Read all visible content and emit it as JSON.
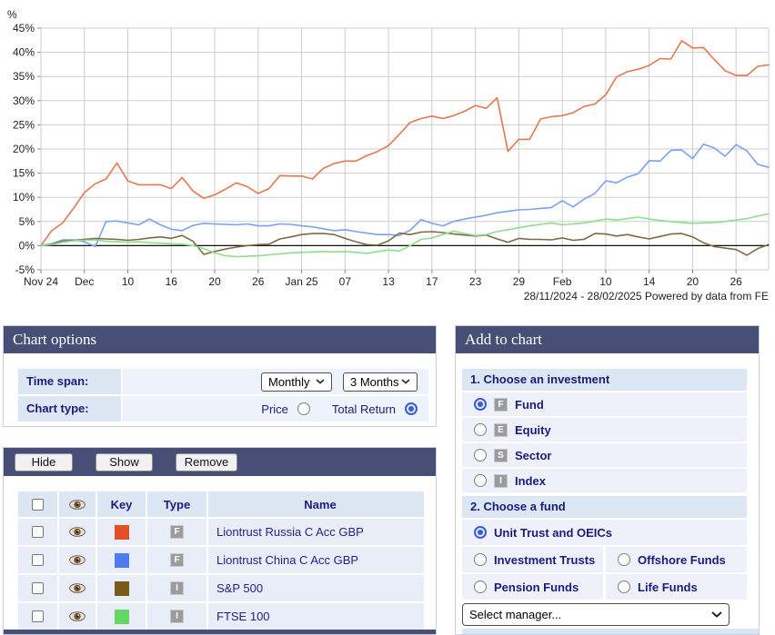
{
  "colors": {
    "header_bar": "#474f76",
    "section_bar": "#dde6f3",
    "row_bg": "#eef1f9",
    "navy_text": "#1b1b7e",
    "grid": "#cdcdcd"
  },
  "chart_data": {
    "type": "line",
    "title": "",
    "y_unit": "%",
    "ylim": [
      -5,
      45
    ],
    "ytick_step": 5,
    "ytick_labels": [
      "45%",
      "40%",
      "35%",
      "30%",
      "25%",
      "20%",
      "15%",
      "10%",
      "5%",
      "0%",
      "-5%"
    ],
    "xtick_labels": [
      "Nov 24",
      "Dec",
      "10",
      "16",
      "20",
      "26",
      "Jan 25",
      "07",
      "13",
      "17",
      "23",
      "29",
      "Feb",
      "10",
      "14",
      "20",
      "26"
    ],
    "xtick_every": 4,
    "grid": true,
    "zero_line": true,
    "footer": "28/11/2024 - 28/02/2025 Powered by data from FE",
    "series": [
      {
        "name": "Liontrust Russia C Acc GBP",
        "color": "#e8764f",
        "values": [
          0.0,
          3.1,
          4.7,
          7.7,
          11.0,
          12.8,
          13.8,
          17.1,
          13.4,
          12.6,
          12.6,
          12.6,
          11.8,
          14.1,
          11.3,
          9.8,
          10.5,
          11.7,
          13.0,
          12.2,
          10.8,
          11.8,
          14.5,
          14.4,
          14.4,
          13.8,
          16.0,
          17.0,
          17.5,
          17.5,
          18.6,
          19.5,
          20.7,
          23.0,
          25.5,
          26.3,
          26.8,
          26.3,
          26.9,
          27.8,
          29.0,
          28.4,
          30.6,
          19.5,
          22.0,
          22.0,
          26.2,
          26.7,
          26.9,
          27.5,
          28.8,
          29.3,
          31.2,
          34.9,
          36.0,
          36.5,
          37.3,
          38.7,
          38.6,
          42.4,
          40.9,
          41.0,
          38.5,
          36.2,
          35.2,
          35.2,
          37.1,
          37.4
        ]
      },
      {
        "name": "Liontrust China C Acc GBP",
        "color": "#7aa2f0",
        "values": [
          0.0,
          0.4,
          1.2,
          1.2,
          0.8,
          -0.2,
          5.0,
          5.1,
          4.7,
          4.3,
          5.5,
          4.3,
          3.4,
          3.1,
          4.2,
          4.6,
          4.5,
          4.4,
          4.3,
          4.5,
          4.1,
          4.1,
          4.5,
          4.4,
          4.1,
          3.9,
          3.5,
          3.1,
          3.3,
          2.9,
          2.6,
          2.3,
          2.3,
          2.1,
          3.2,
          5.4,
          4.6,
          4.1,
          5.0,
          5.5,
          5.9,
          6.3,
          6.8,
          7.1,
          7.4,
          7.5,
          7.7,
          7.9,
          9.3,
          8.0,
          9.6,
          10.8,
          13.4,
          13.0,
          14.2,
          14.9,
          17.6,
          17.5,
          19.7,
          19.8,
          18.0,
          21.0,
          20.2,
          18.5,
          20.9,
          19.6,
          16.8,
          16.2
        ]
      },
      {
        "name": "S&P 500",
        "color": "#7d6a42",
        "values": [
          0.0,
          0.3,
          0.9,
          1.1,
          1.3,
          1.5,
          1.4,
          1.3,
          1.1,
          1.3,
          1.6,
          1.8,
          1.5,
          2.1,
          0.9,
          -1.8,
          -1.2,
          -0.7,
          -0.3,
          0.0,
          0.2,
          0.3,
          1.4,
          1.8,
          2.3,
          2.5,
          2.5,
          2.3,
          1.5,
          0.8,
          0.2,
          0.1,
          1.0,
          2.6,
          2.3,
          2.8,
          2.9,
          2.7,
          2.4,
          2.2,
          2.0,
          2.2,
          1.4,
          0.7,
          1.5,
          1.3,
          1.3,
          1.2,
          1.6,
          1.1,
          1.3,
          2.5,
          2.4,
          2.0,
          2.3,
          1.8,
          1.4,
          1.9,
          2.4,
          2.5,
          1.8,
          0.6,
          -0.2,
          -0.5,
          -0.8,
          -2.0,
          -0.6,
          0.2
        ]
      },
      {
        "name": "FTSE 100",
        "color": "#8ce08c",
        "values": [
          0.0,
          0.2,
          0.7,
          1.0,
          1.1,
          1.2,
          0.9,
          0.8,
          0.7,
          0.8,
          0.6,
          0.5,
          0.4,
          0.3,
          0.0,
          -0.6,
          -1.5,
          -2.1,
          -2.3,
          -2.2,
          -2.1,
          -1.9,
          -1.7,
          -1.5,
          -1.4,
          -1.3,
          -1.2,
          -1.3,
          -1.2,
          -1.4,
          -1.6,
          -1.2,
          -0.9,
          -1.1,
          0.0,
          1.3,
          1.6,
          2.3,
          3.0,
          2.5,
          2.1,
          2.3,
          2.9,
          3.3,
          3.7,
          4.1,
          4.4,
          4.7,
          4.3,
          4.5,
          4.7,
          5.1,
          5.5,
          5.3,
          5.6,
          5.9,
          5.5,
          5.2,
          5.0,
          4.8,
          4.6,
          4.7,
          4.8,
          5.0,
          5.3,
          5.6,
          6.1,
          6.6
        ]
      }
    ]
  },
  "chart_options": {
    "title": "Chart options",
    "time_span_label": "Time span:",
    "chart_type_label": "Chart type:",
    "frequency_value": "Monthly",
    "period_value": "3 Months",
    "price_label": "Price",
    "price_selected": false,
    "total_return_label": "Total Return",
    "total_return_selected": true
  },
  "series_table": {
    "hide_label": "Hide",
    "show_label": "Show",
    "remove_label": "Remove",
    "columns": {
      "key": "Key",
      "type": "Type",
      "name": "Name"
    },
    "rows": [
      {
        "name": "Liontrust Russia C Acc GBP",
        "key_color": "#e0512a",
        "type": "F"
      },
      {
        "name": "Liontrust China C Acc GBP",
        "key_color": "#4d7bf0",
        "type": "F"
      },
      {
        "name": "S&P 500",
        "key_color": "#795a1d",
        "type": "I"
      },
      {
        "name": "FTSE 100",
        "key_color": "#63d763",
        "type": "I"
      }
    ]
  },
  "add_to_chart": {
    "title": "Add to chart",
    "section1": {
      "title": "1. Choose an investment",
      "options": [
        {
          "label": "Fund",
          "badge": "F",
          "selected": true
        },
        {
          "label": "Equity",
          "badge": "E",
          "selected": false
        },
        {
          "label": "Sector",
          "badge": "S",
          "selected": false
        },
        {
          "label": "Index",
          "badge": "I",
          "selected": false
        }
      ]
    },
    "section2": {
      "title": "2. Choose a fund",
      "options": [
        {
          "label": "Unit Trust and OEICs",
          "selected": true
        },
        {
          "label": "Investment Trusts",
          "selected": false
        },
        {
          "label": "Offshore Funds",
          "selected": false
        },
        {
          "label": "Pension Funds",
          "selected": false
        },
        {
          "label": "Life Funds",
          "selected": false
        }
      ],
      "manager_select_value": "Select manager..."
    }
  }
}
